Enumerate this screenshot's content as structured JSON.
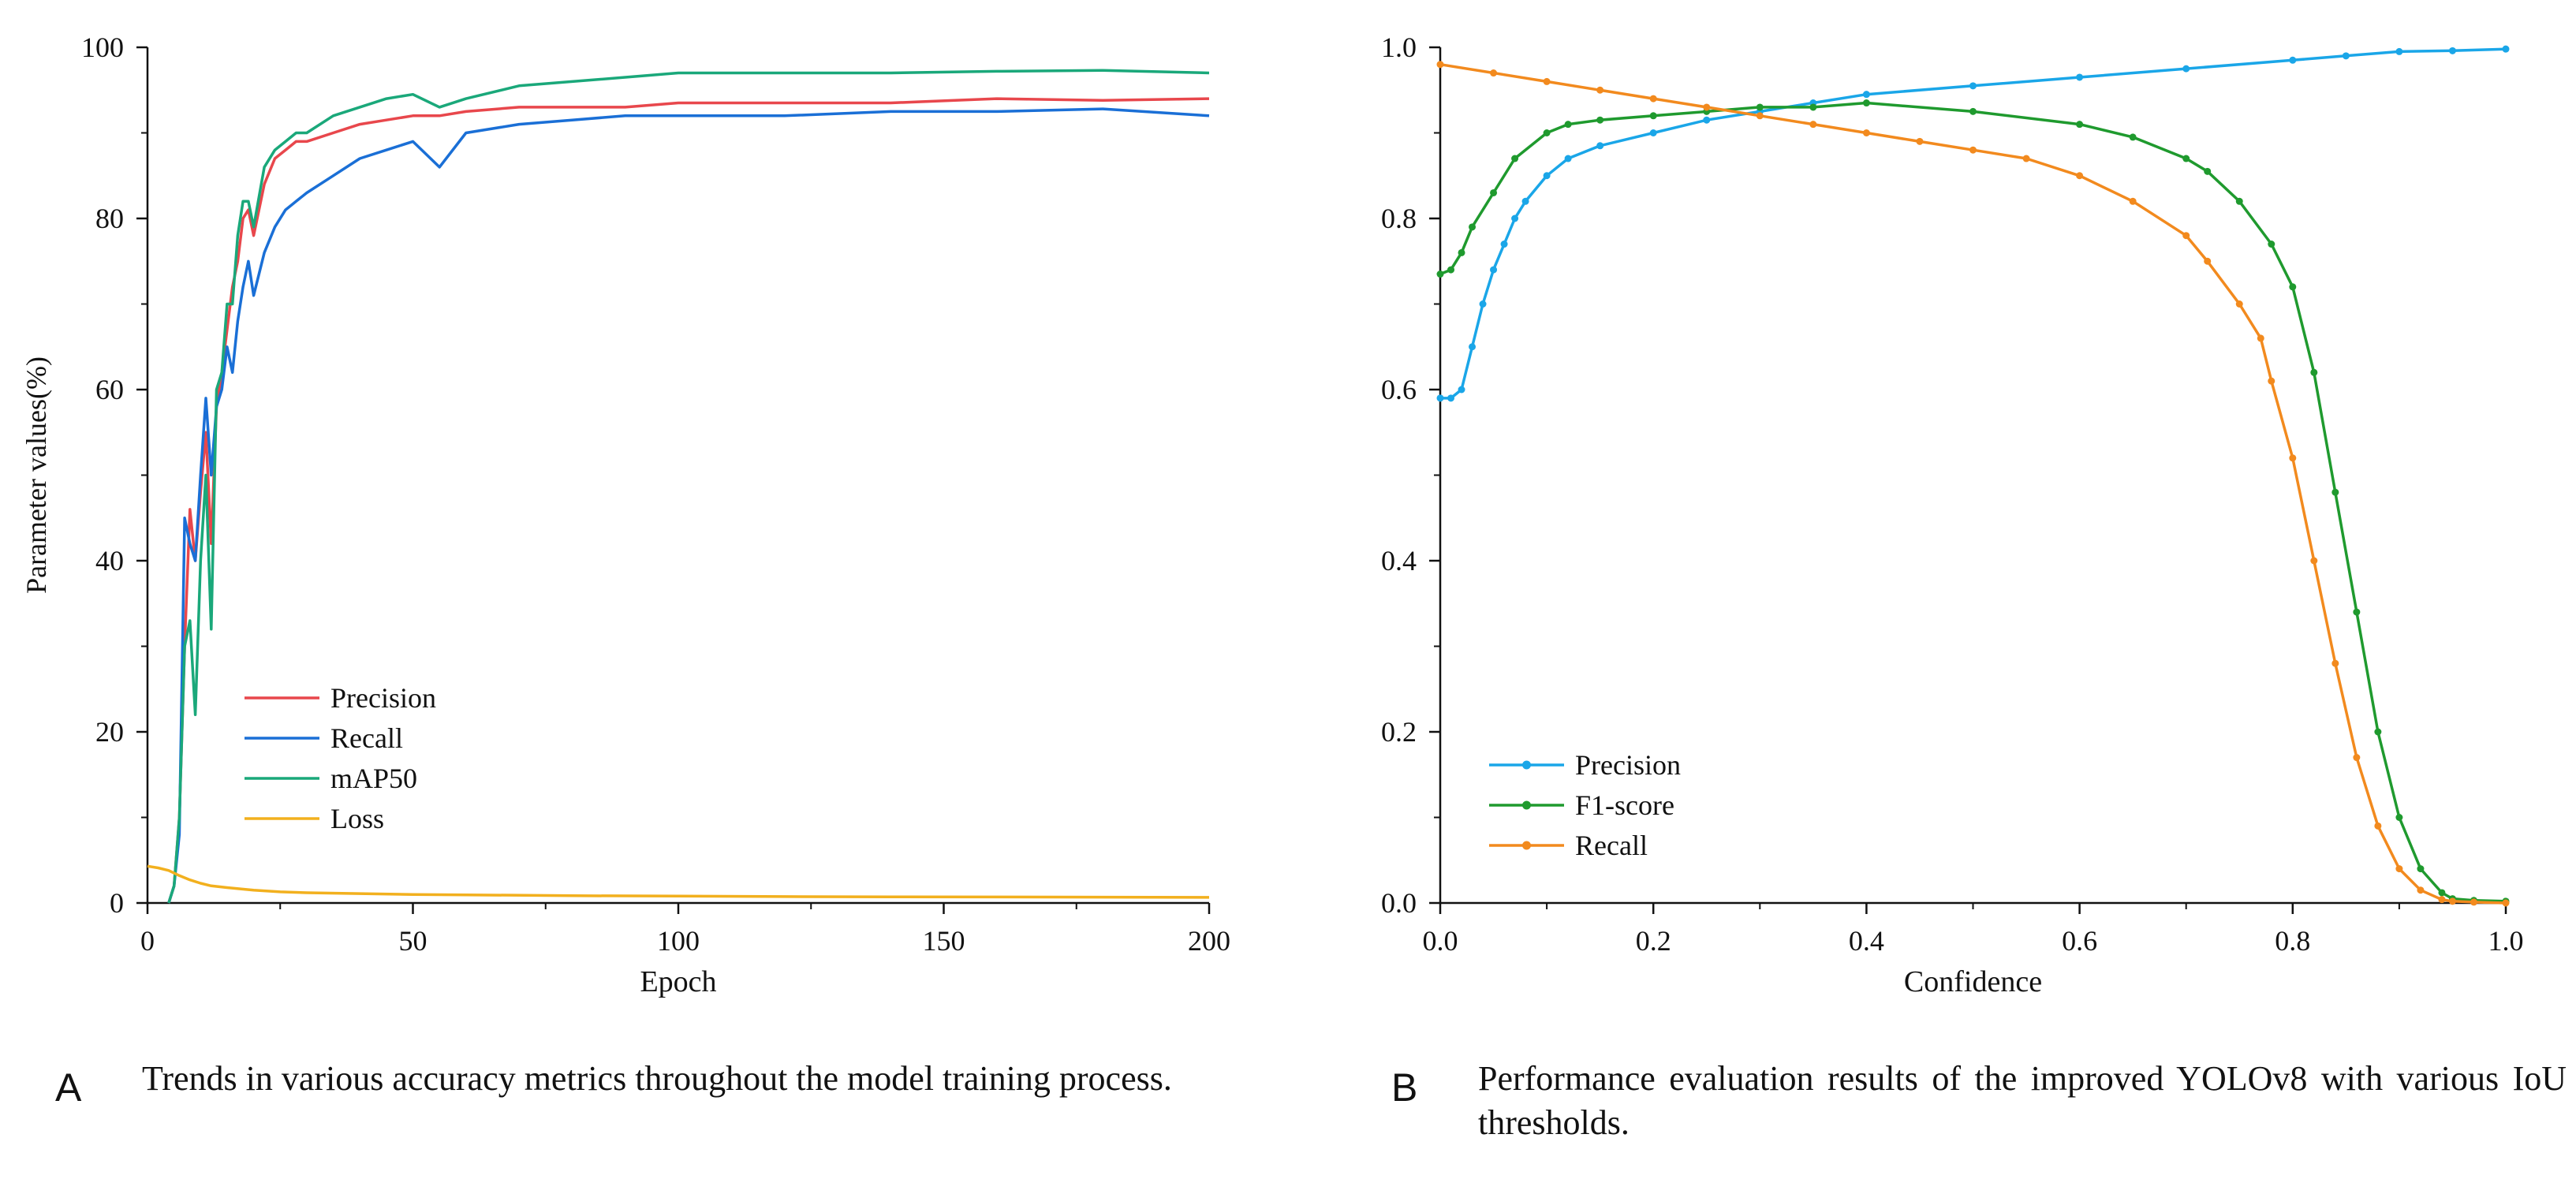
{
  "chart_data": [
    {
      "type": "line",
      "panel_label": "A",
      "caption": "Trends in various accuracy metrics throughout the model training process.",
      "xlabel": "Epoch",
      "ylabel": "Parameter values(%)",
      "xlim": [
        0,
        200
      ],
      "ylim": [
        0,
        100
      ],
      "xticks": [
        0,
        50,
        100,
        150,
        200
      ],
      "yticks": [
        0,
        20,
        40,
        60,
        80,
        100
      ],
      "legend_position": "center-left",
      "series": [
        {
          "name": "Precision",
          "color": "#e8474c",
          "x": [
            4,
            5,
            6,
            7,
            8,
            9,
            10,
            11,
            12,
            13,
            14,
            15,
            16,
            17,
            18,
            19,
            20,
            22,
            24,
            26,
            28,
            30,
            35,
            40,
            45,
            50,
            55,
            60,
            70,
            80,
            90,
            100,
            120,
            140,
            160,
            180,
            200
          ],
          "y": [
            0,
            2,
            10,
            30,
            46,
            40,
            48,
            55,
            42,
            58,
            62,
            67,
            72,
            75,
            80,
            81,
            78,
            84,
            87,
            88,
            89,
            89,
            90,
            91,
            91.5,
            92,
            92,
            92.5,
            93,
            93,
            93,
            93.5,
            93.5,
            93.5,
            94,
            93.8,
            94
          ]
        },
        {
          "name": "Recall",
          "color": "#1a6fd6",
          "x": [
            4,
            5,
            6,
            7,
            8,
            9,
            10,
            11,
            12,
            13,
            14,
            15,
            16,
            17,
            18,
            19,
            20,
            22,
            24,
            26,
            28,
            30,
            35,
            40,
            45,
            50,
            55,
            60,
            70,
            80,
            90,
            100,
            120,
            140,
            160,
            180,
            200
          ],
          "y": [
            0,
            2,
            8,
            45,
            42,
            40,
            50,
            59,
            50,
            58,
            60,
            65,
            62,
            68,
            72,
            75,
            71,
            76,
            79,
            81,
            82,
            83,
            85,
            87,
            88,
            89,
            86,
            90,
            91,
            91.5,
            92,
            92,
            92,
            92.5,
            92.5,
            92.8,
            92
          ]
        },
        {
          "name": "mAP50",
          "color": "#1aa87a",
          "x": [
            4,
            5,
            6,
            7,
            8,
            9,
            10,
            11,
            12,
            13,
            14,
            15,
            16,
            17,
            18,
            19,
            20,
            22,
            24,
            26,
            28,
            30,
            35,
            40,
            45,
            50,
            55,
            60,
            70,
            80,
            90,
            100,
            120,
            140,
            160,
            180,
            200
          ],
          "y": [
            0,
            2,
            10,
            30,
            33,
            22,
            40,
            50,
            32,
            60,
            62,
            70,
            70,
            78,
            82,
            82,
            79,
            86,
            88,
            89,
            90,
            90,
            92,
            93,
            94,
            94.5,
            93,
            94,
            95.5,
            96,
            96.5,
            97,
            97,
            97,
            97.2,
            97.3,
            97
          ]
        },
        {
          "name": "Loss",
          "color": "#f2b01e",
          "x": [
            0,
            2,
            4,
            6,
            8,
            10,
            12,
            15,
            20,
            25,
            30,
            40,
            50,
            60,
            80,
            100,
            120,
            140,
            160,
            180,
            200
          ],
          "y": [
            4.3,
            4.1,
            3.8,
            3.2,
            2.7,
            2.3,
            2.0,
            1.8,
            1.5,
            1.3,
            1.2,
            1.1,
            1.0,
            0.95,
            0.85,
            0.8,
            0.75,
            0.72,
            0.7,
            0.68,
            0.65
          ]
        }
      ]
    },
    {
      "type": "line",
      "panel_label": "B",
      "caption": "Performance evaluation results of the improved YOLOv8 with various IoU thresholds.",
      "xlabel": "Confidence",
      "ylabel": "",
      "xlim": [
        0,
        1
      ],
      "ylim": [
        0,
        1
      ],
      "xticks": [
        0.0,
        0.2,
        0.4,
        0.6,
        0.8,
        1.0
      ],
      "yticks": [
        0.0,
        0.2,
        0.4,
        0.6,
        0.8,
        1.0
      ],
      "xtick_labels": [
        "0.0",
        "0.2",
        "0.4",
        "0.6",
        "0.8",
        "1.0"
      ],
      "ytick_labels": [
        "0.0",
        "0.2",
        "0.4",
        "0.6",
        "0.8",
        "1.0"
      ],
      "legend_position": "bottom-left",
      "series": [
        {
          "name": "Precision",
          "color": "#1aa6e8",
          "x": [
            0,
            0.01,
            0.02,
            0.03,
            0.04,
            0.05,
            0.06,
            0.07,
            0.08,
            0.1,
            0.12,
            0.15,
            0.2,
            0.25,
            0.3,
            0.35,
            0.4,
            0.5,
            0.6,
            0.7,
            0.8,
            0.85,
            0.9,
            0.95,
            1.0
          ],
          "y": [
            0.59,
            0.59,
            0.6,
            0.65,
            0.7,
            0.74,
            0.77,
            0.8,
            0.82,
            0.85,
            0.87,
            0.885,
            0.9,
            0.915,
            0.925,
            0.935,
            0.945,
            0.955,
            0.965,
            0.975,
            0.985,
            0.99,
            0.995,
            0.996,
            0.998
          ]
        },
        {
          "name": "F1-score",
          "color": "#1f9a2e",
          "x": [
            0,
            0.01,
            0.02,
            0.03,
            0.05,
            0.07,
            0.1,
            0.12,
            0.15,
            0.2,
            0.25,
            0.3,
            0.35,
            0.4,
            0.5,
            0.6,
            0.65,
            0.7,
            0.72,
            0.75,
            0.78,
            0.8,
            0.82,
            0.84,
            0.86,
            0.88,
            0.9,
            0.92,
            0.94,
            0.95,
            0.97,
            1.0
          ],
          "y": [
            0.735,
            0.74,
            0.76,
            0.79,
            0.83,
            0.87,
            0.9,
            0.91,
            0.915,
            0.92,
            0.925,
            0.93,
            0.93,
            0.935,
            0.925,
            0.91,
            0.895,
            0.87,
            0.855,
            0.82,
            0.77,
            0.72,
            0.62,
            0.48,
            0.34,
            0.2,
            0.1,
            0.04,
            0.012,
            0.005,
            0.003,
            0.002
          ]
        },
        {
          "name": "Recall",
          "color": "#f28a1e",
          "x": [
            0,
            0.05,
            0.1,
            0.15,
            0.2,
            0.25,
            0.3,
            0.35,
            0.4,
            0.45,
            0.5,
            0.55,
            0.6,
            0.65,
            0.7,
            0.72,
            0.75,
            0.77,
            0.78,
            0.8,
            0.82,
            0.84,
            0.86,
            0.88,
            0.9,
            0.92,
            0.94,
            0.95,
            0.97,
            1.0
          ],
          "y": [
            0.98,
            0.97,
            0.96,
            0.95,
            0.94,
            0.93,
            0.92,
            0.91,
            0.9,
            0.89,
            0.88,
            0.87,
            0.85,
            0.82,
            0.78,
            0.75,
            0.7,
            0.66,
            0.61,
            0.52,
            0.4,
            0.28,
            0.17,
            0.09,
            0.04,
            0.015,
            0.004,
            0.002,
            0.001,
            0.0
          ]
        }
      ]
    }
  ]
}
